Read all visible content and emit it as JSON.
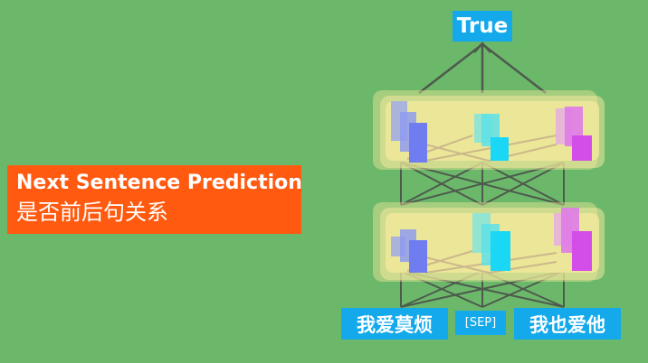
{
  "title": {
    "line1": "Next Sentence Prediction",
    "line2": "是否前后句关系"
  },
  "output": {
    "label": "True"
  },
  "tokens": {
    "sentence_a": "我爱莫烦",
    "separator": "[SEP]",
    "sentence_b": "我也爱他"
  },
  "colors": {
    "background": "#6cb86a",
    "title_box": "#ff5a10",
    "label_box": "#13a9ea",
    "layer_fill": "#f0e79a",
    "vector_blue": "#6f7df0",
    "vector_cyan": "#1ad8f5",
    "vector_magenta": "#d34de8",
    "line": "#4d5a4d"
  }
}
